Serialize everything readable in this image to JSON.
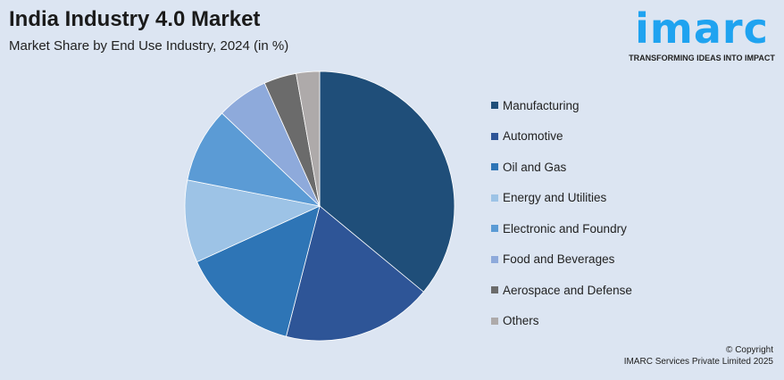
{
  "title": "India Industry 4.0 Market",
  "subtitle": "Market Share by End Use Industry, 2024 (in %)",
  "logo": {
    "word": "imarc",
    "tagline": "TRANSFORMING IDEAS INTO IMPACT",
    "color": "#1fa3f0"
  },
  "copyright": {
    "line1": "© Copyright",
    "line2": "IMARC Services Private Limited 2025"
  },
  "chart_data": {
    "type": "pie",
    "title": "India Industry 4.0 Market",
    "subtitle": "Market Share by End Use Industry, 2024 (in %)",
    "legend_placement": "right",
    "categories": [
      "Manufacturing",
      "Automotive",
      "Oil and Gas",
      "Energy and Utilities",
      "Electronic and Foundry",
      "Food and Beverages",
      "Aerospace and Defense",
      "Others"
    ],
    "values": [
      36,
      18,
      14.2,
      9.9,
      9,
      6.2,
      3.9,
      2.8
    ],
    "colors": [
      "#1f4e79",
      "#2e5597",
      "#2e75b6",
      "#9dc3e6",
      "#5b9bd5",
      "#8eaadb",
      "#6b6b6b",
      "#aeaaaa"
    ]
  }
}
